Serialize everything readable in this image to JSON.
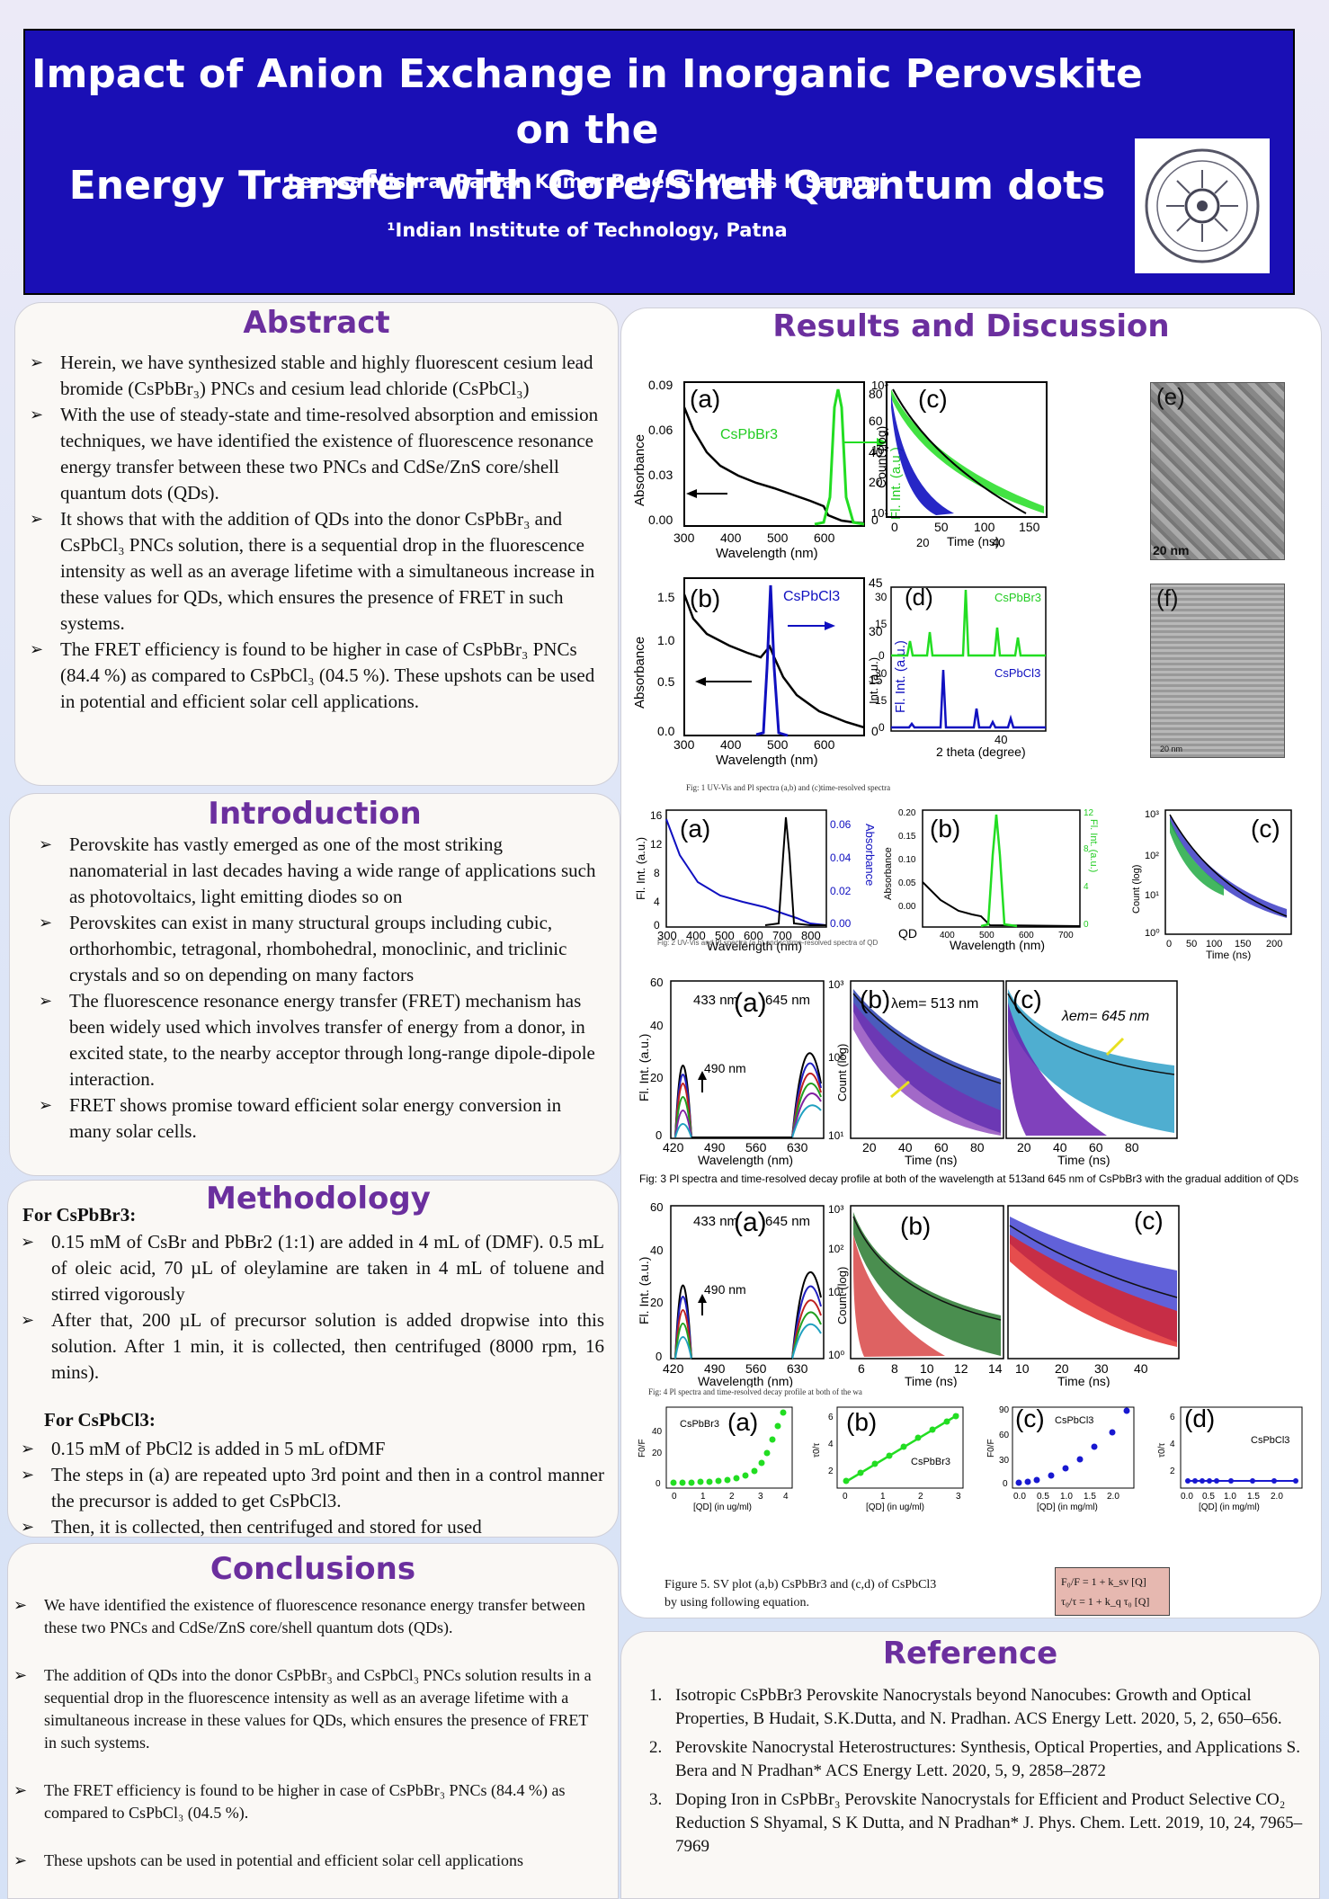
{
  "header": {
    "title_line1": "Impact of Anion Exchange in Inorganic Perovskite on the",
    "title_line2": "Energy Transfer with Core/Shell Quantum dots",
    "authors": "Leepsa Mishra, Ranjan Kumar Behera¹, Manas K Sarangi",
    "affiliation": "¹Indian Institute of Technology, Patna"
  },
  "abstract": {
    "heading": "Abstract",
    "items": [
      "Herein, we have synthesized stable and highly fluorescent cesium lead bromide (CsPbBr₃) PNCs and cesium lead chloride (CsPbCl₃)",
      "With the use of steady-state and time-resolved absorption and emission techniques, we have identified the existence of fluorescence resonance energy transfer between these two PNCs and CdSe/ZnS core/shell quantum dots (QDs).",
      "It shows that with the addition of QDs into the donor CsPbBr₃ and CsPbCl₃ PNCs solution, there is a sequential drop in the fluorescence intensity as well as an average lifetime with a simultaneous increase in these values for QDs, which ensures the presence of FRET in such systems.",
      "The FRET efficiency is found to be higher in case of CsPbBr₃ PNCs (84.4 %) as compared to CsPbCl₃ (04.5 %). These upshots can be used in potential and efficient solar cell applications."
    ]
  },
  "introduction": {
    "heading": "Introduction",
    "items": [
      "Perovskite has vastly emerged as one of the most striking nanomaterial in last decades having a wide range of applications such as photovoltaics, light emitting diodes so on",
      "Perovskites can exist in many structural groups including cubic, orthorhombic, tetragonal, rhombohedral, monoclinic, and triclinic crystals and so on depending on many factors",
      "The fluorescence resonance energy transfer (FRET) mechanism has been widely used which involves transfer of energy from a donor, in excited state, to the nearby acceptor through long-range dipole-dipole interaction.",
      "FRET shows promise toward efficient solar energy conversion in many solar cells."
    ]
  },
  "methodology": {
    "heading": "Methodology",
    "sub1": "For CsPbBr3:",
    "items1": [
      "0.15 mM of CsBr and PbBr2 (1:1) are added in 4 mL of (DMF). 0.5 mL of oleic acid, 70 µL of oleylamine are taken in 4 mL of toluene and stirred vigorously",
      "After that, 200 µL of precursor solution is added dropwise into this solution. After 1 min, it is collected, then centrifuged (8000 rpm, 16 mins)."
    ],
    "sub2": "For CsPbCl3:",
    "items2": [
      "0.15 mM of PbCl2 is added in 5 mL ofDMF",
      "The steps in (a) are repeated upto 3rd point and then in a control manner the precursor is added to get CsPbCl3.",
      "Then, it is collected, then centrifuged and stored for used"
    ]
  },
  "conclusions": {
    "heading": "Conclusions",
    "items": [
      "We have identified the existence of fluorescence resonance energy transfer between these two PNCs and CdSe/ZnS core/shell quantum dots (QDs).",
      "The addition of QDs into the donor CsPbBr₃ and CsPbCl₃ PNCs solution results in a sequential drop in the fluorescence intensity as well as an average lifetime with a simultaneous increase in these values for QDs, which ensures the presence of FRET in such systems.",
      "The FRET efficiency is found to be higher in case of CsPbBr₃ PNCs (84.4 %) as compared to CsPbCl₃ (04.5 %).",
      "These upshots can be used in potential and efficient solar cell applications"
    ]
  },
  "results": {
    "heading": "Results and Discussion",
    "fig1_caption": "Fig: 1 UV-Vis and Pl spectra (a,b) and (c)time-resolved spectra",
    "fig2_caption": "Fig: 2 UV-Vis and Pl spectra (a,b) and (c)time-resolved spectra of QD",
    "fig3_caption": "Fig: 3 Pl spectra and time-resolved decay profile at both of the wavelength at 513and 645 nm of CsPbBr3 with the gradual addition of QDs",
    "fig4_caption": "Fig: 4 Pl spectra and time-resolved decay profile at both of the wa",
    "fig5_caption_l1": "Figure 5. SV plot (a,b) CsPbBr3 and (c,d) of CsPbCl3",
    "fig5_caption_l2": "by using following equation.",
    "eq1": "F₀/F = 1 + k_sv [Q]",
    "eq2": "τ₀/τ = 1 + k_q τ₀ [Q]",
    "labels": {
      "a": "(a)",
      "b": "(b)",
      "c": "(c)",
      "d": "(d)",
      "e": "(e)",
      "f": "(f)",
      "cspbbr3": "CsPbBr3",
      "cspbcl3": "CsPbCl3",
      "wavelength": "Wavelength (nm)",
      "absorbance": "Absorbance",
      "flint": "Fl. Int. (a.u.)",
      "count": "Count (log)",
      "time": "Time (ns)",
      "theta": "2 theta (degree)",
      "int": "Int. (a.u.)",
      "nm433": "433 nm",
      "nm645": "645 nm",
      "nm490": "490 nm",
      "lem513": "λem= 513 nm",
      "lem645": "λem= 645 nm",
      "qd_mgml": "[QD] (in mg/ml)",
      "qd_ugml": "[QD] (in ug/ml)",
      "f0f": "F0/F",
      "t0t": "τ0/τ",
      "scale": "20 nm",
      "qd": "QD"
    }
  },
  "reference": {
    "heading": "Reference",
    "items": [
      "Isotropic CsPbBr3 Perovskite Nanocrystals beyond Nanocubes: Growth and Optical Properties, B Hudait, S.K.Dutta, and N. Pradhan. ACS Energy Lett. 2020, 5, 2, 650–656.",
      "Perovskite Nanocrystal Heterostructures: Synthesis, Optical Properties, and Applications S. Bera and N Pradhan* ACS Energy Lett. 2020, 5, 9, 2858–2872",
      "Doping Iron in CsPbBr₃ Perovskite Nanocrystals for Efficient and Product Selective CO₂ Reduction S Shyamal, S K Dutta, and N Pradhan* J. Phys. Chem. Lett. 2019, 10, 24, 7965–7969"
    ]
  },
  "colors": {
    "header_bg": "#1a0fb5",
    "heading": "#6b2f9e",
    "green": "#22dd22",
    "blue": "#1010c0"
  }
}
